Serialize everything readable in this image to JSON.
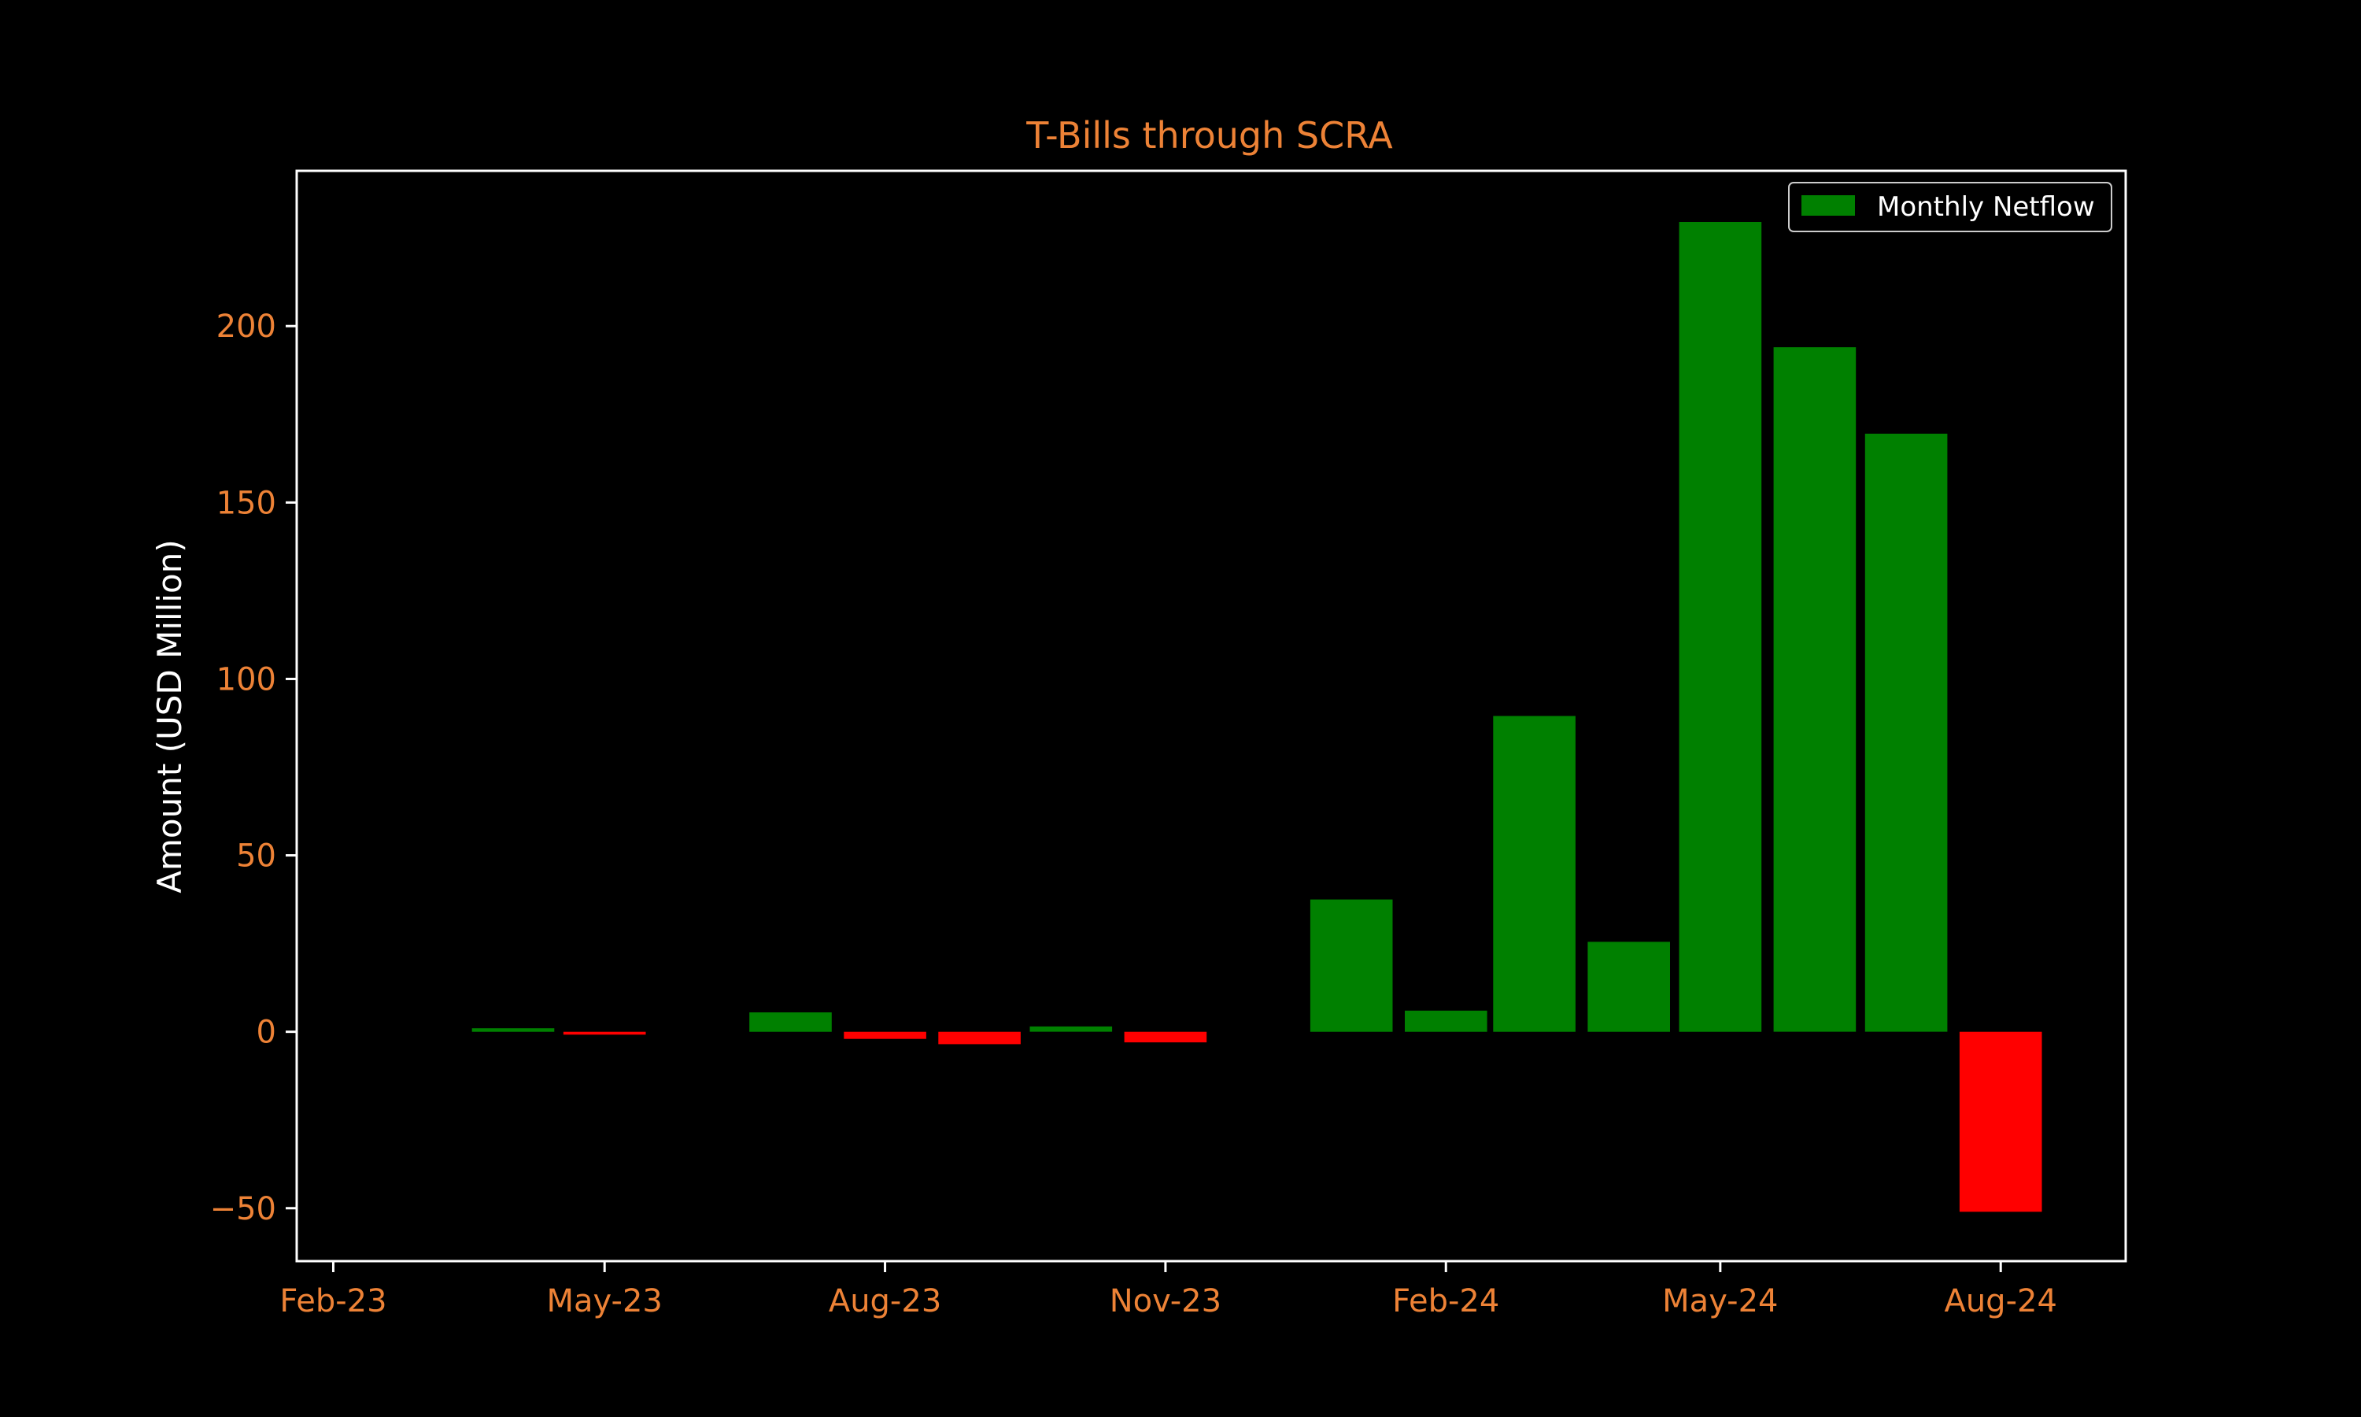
{
  "chart_data": {
    "type": "bar",
    "title": "T-Bills through SCRA",
    "xlabel": "",
    "ylabel": "Amount (USD Million)",
    "ylim": [
      -65,
      244
    ],
    "yticks": [
      -50,
      0,
      50,
      100,
      150,
      200
    ],
    "x_tick_labels": [
      {
        "label": "Feb-23",
        "date": "2023-02-01"
      },
      {
        "label": "May-23",
        "date": "2023-05-01"
      },
      {
        "label": "Aug-23",
        "date": "2023-08-01"
      },
      {
        "label": "Nov-23",
        "date": "2023-11-01"
      },
      {
        "label": "Feb-24",
        "date": "2024-02-01"
      },
      {
        "label": "May-24",
        "date": "2024-05-01"
      },
      {
        "label": "Aug-24",
        "date": "2024-08-01"
      }
    ],
    "xlim": [
      "2023-01-20",
      "2024-09-11"
    ],
    "series": [
      {
        "name": "Monthly Netflow",
        "x": [
          "2023-04-01",
          "2023-05-01",
          "2023-07-01",
          "2023-08-01",
          "2023-09-01",
          "2023-10-01",
          "2023-11-01",
          "2024-01-01",
          "2024-02-01",
          "2024-03-01",
          "2024-04-01",
          "2024-05-01",
          "2024-06-01",
          "2024-07-01",
          "2024-08-01"
        ],
        "values": [
          1,
          -0.8,
          5.5,
          -2,
          -3.5,
          1.5,
          -3,
          37.5,
          6,
          89.5,
          25.5,
          229.5,
          194,
          169.5,
          -51
        ]
      }
    ],
    "positive_color": "#008000",
    "negative_color": "#ff0000",
    "legend": {
      "label": "Monthly Netflow",
      "position": "upper-right"
    },
    "grid": false
  },
  "colors": {
    "background": "#000000",
    "text_accent": "#ed8236",
    "axis_label": "#ffffff",
    "frame": "#ffffff"
  }
}
